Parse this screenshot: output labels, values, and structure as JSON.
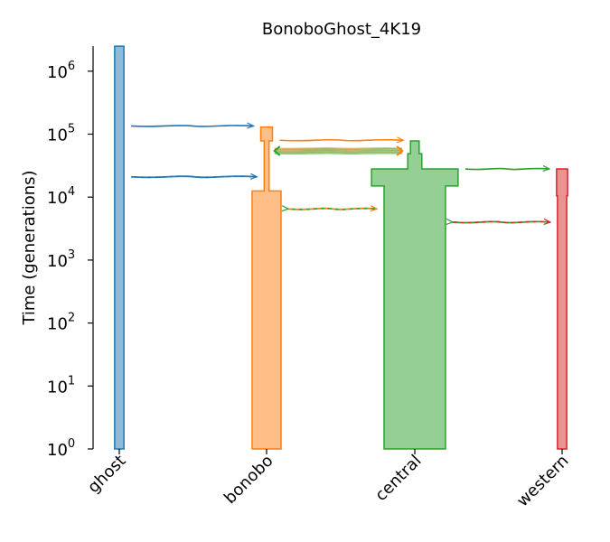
{
  "chart_data": {
    "type": "demography",
    "title": "BonoboGhost_4K19",
    "ylabel": "Time (generations)",
    "yscale": "log",
    "ylim": [
      1,
      2500000
    ],
    "y_ticks": [
      {
        "value": 1,
        "base": "10",
        "exp": "0"
      },
      {
        "value": 10,
        "base": "10",
        "exp": "1"
      },
      {
        "value": 100,
        "base": "10",
        "exp": "2"
      },
      {
        "value": 1000,
        "base": "10",
        "exp": "3"
      },
      {
        "value": 10000,
        "base": "10",
        "exp": "4"
      },
      {
        "value": 100000,
        "base": "10",
        "exp": "5"
      },
      {
        "value": 1000000,
        "base": "10",
        "exp": "6"
      }
    ],
    "categories": [
      "ghost",
      "bonobo",
      "central",
      "western"
    ],
    "colors": {
      "ghost": "#1f77b4",
      "bonobo": "#ff7f0e",
      "central": "#2ca02c",
      "western": "#d62728"
    },
    "populations": [
      {
        "name": "ghost",
        "color": "#1f77b4",
        "epochs": [
          {
            "start": 1,
            "end": 2500000,
            "relative_width": 0.15
          }
        ]
      },
      {
        "name": "bonobo",
        "color": "#ff7f0e",
        "epochs": [
          {
            "start": 1,
            "end": 12500,
            "relative_width": 0.47
          },
          {
            "start": 12500,
            "end": 78000,
            "relative_width": 0.08
          },
          {
            "start": 78000,
            "end": 130000,
            "relative_width": 0.19
          }
        ]
      },
      {
        "name": "central",
        "color": "#2ca02c",
        "epochs": [
          {
            "start": 1,
            "end": 15000,
            "relative_width": 1.0
          },
          {
            "start": 15000,
            "end": 28000,
            "relative_width": 1.41
          },
          {
            "start": 28000,
            "end": 49000,
            "relative_width": 0.23
          },
          {
            "start": 49000,
            "end": 78000,
            "relative_width": 0.14
          }
        ]
      },
      {
        "name": "western",
        "color": "#d62728",
        "epochs": [
          {
            "start": 1,
            "end": 10500,
            "relative_width": 0.15
          },
          {
            "start": 10500,
            "end": 28000,
            "relative_width": 0.18
          }
        ]
      }
    ],
    "migrations": [
      {
        "source": "ghost",
        "dest": "bonobo",
        "time": 135000,
        "style": "solid",
        "color": "#1f77b4"
      },
      {
        "source": "ghost",
        "dest": "bonobo",
        "time": 21000,
        "style": "dashed",
        "color": "#1f77b4"
      },
      {
        "source": "bonobo",
        "dest": "central",
        "time": 80000,
        "style": "solid",
        "color": "#ff7f0e"
      },
      {
        "source": "central",
        "dest": "western",
        "time": 28000,
        "style": "solid",
        "color": "#2ca02c"
      },
      {
        "source": "bonobo",
        "dest": "central",
        "time": 6500,
        "style": "dashed",
        "colors": [
          "#ff7f0e",
          "#2ca02c"
        ]
      },
      {
        "source": "central",
        "dest": "western",
        "time": 4000,
        "style": "dashed",
        "colors": [
          "#d62728",
          "#2ca02c"
        ]
      }
    ],
    "pulse_band": {
      "between": [
        "bonobo",
        "central"
      ],
      "time_low": 49000,
      "time_high": 60000,
      "colors": [
        "#2ca02c",
        "#ff7f0e"
      ]
    }
  }
}
